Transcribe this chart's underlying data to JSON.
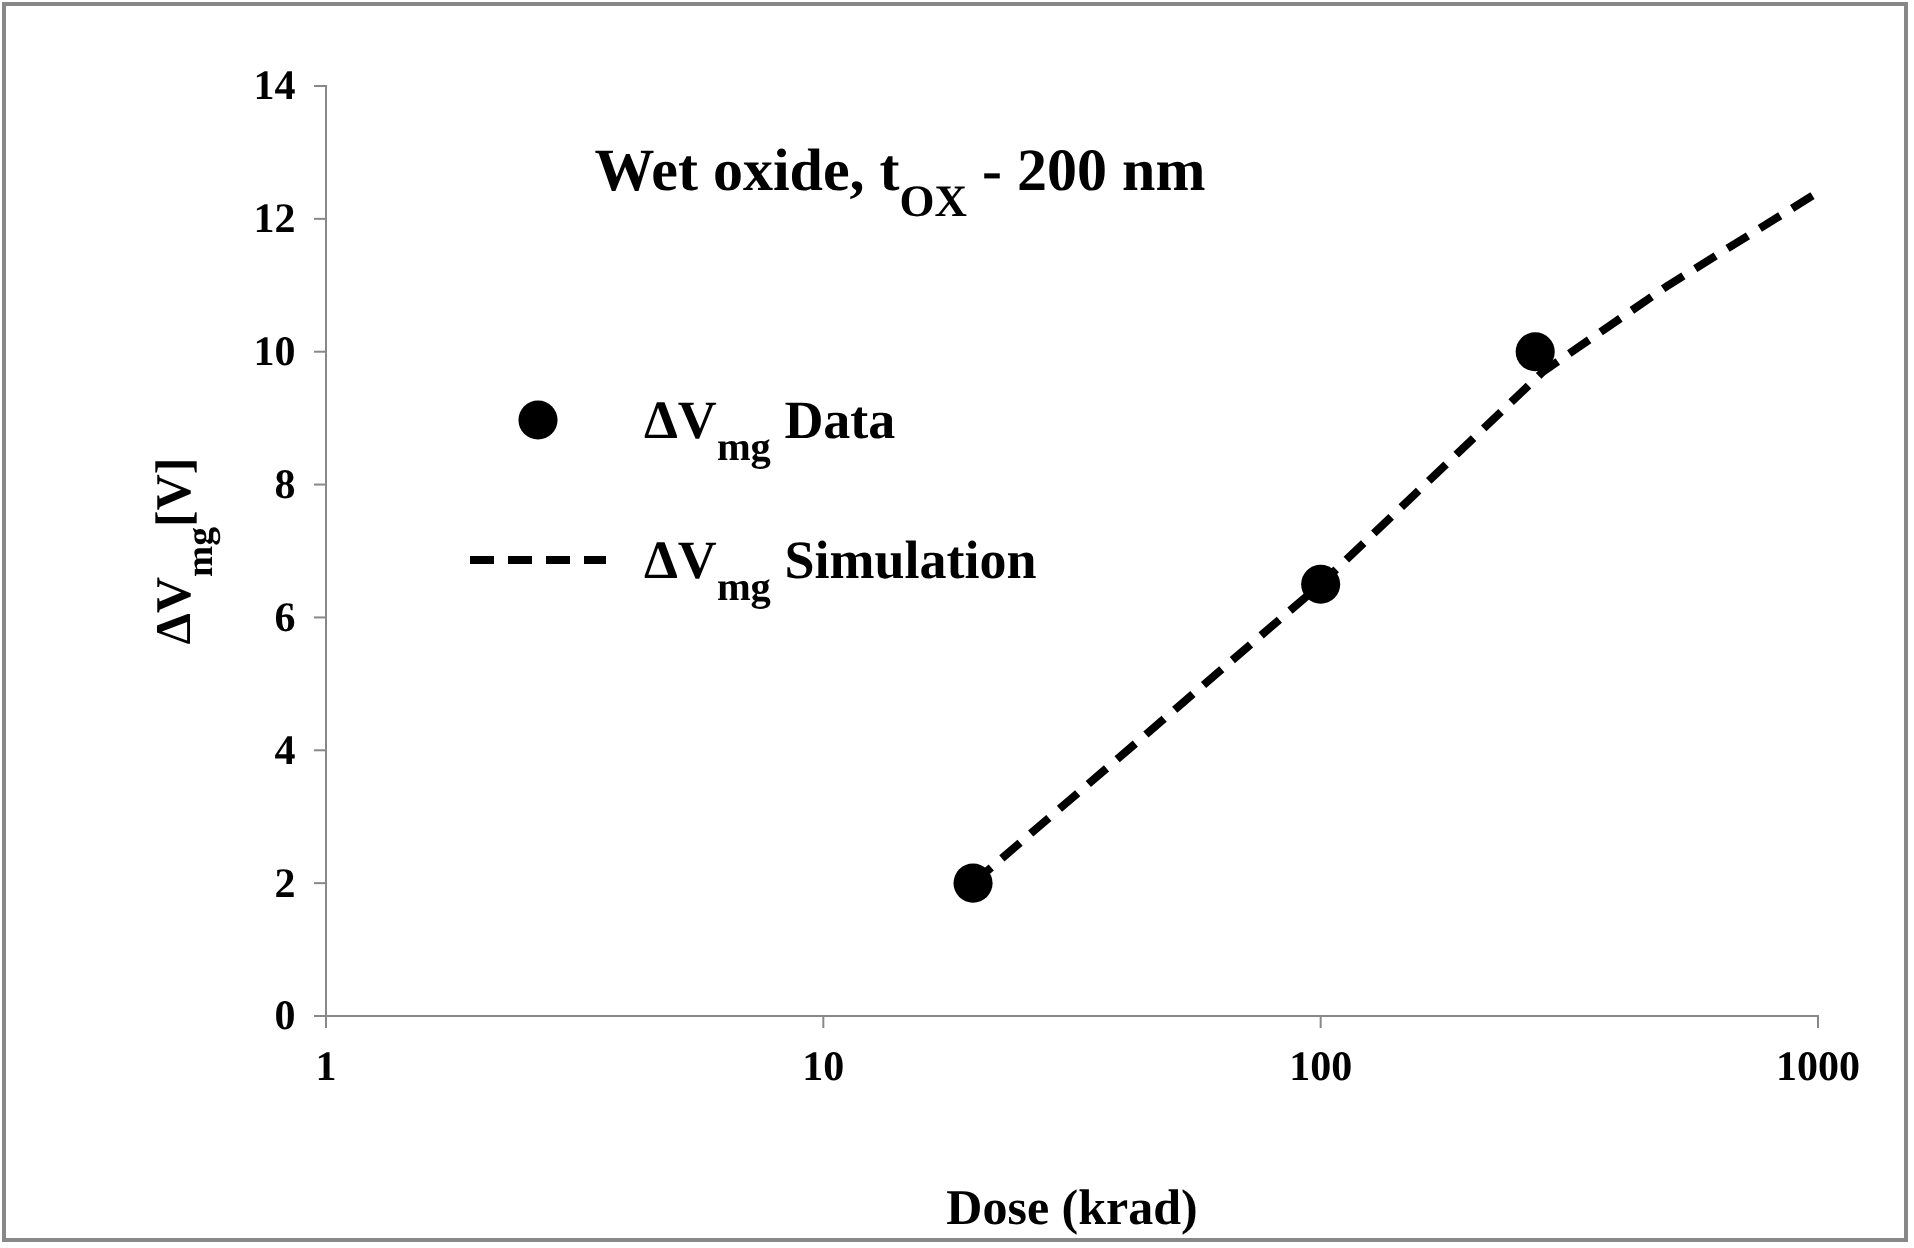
{
  "chart_data": {
    "type": "scatter",
    "title": "Wet oxide, t$_{OX}$ - 200 nm",
    "xlabel": "Dose (krad)",
    "ylabel": "ΔV$_{mg}$[V]",
    "log": "x",
    "xlim": [
      1,
      1000
    ],
    "xticks": [
      1,
      10,
      100,
      1000
    ],
    "ylim": [
      0,
      14
    ],
    "yticks": [
      0,
      2,
      4,
      6,
      8,
      10,
      12,
      14
    ],
    "grid": false,
    "legend": "left",
    "series": [
      {
        "name": "ΔV$_{mg}$ Data",
        "color": "#000000",
        "marker": "circle",
        "x": [
          20,
          100,
          270
        ],
        "values": [
          2,
          6.5,
          10
        ]
      },
      {
        "name": "ΔV$_{mg}$ Simulation",
        "type": "line",
        "color": "#000000",
        "line_style": "dashed",
        "marker": "none",
        "x": [
          20,
          100,
          280,
          500,
          1000
        ],
        "values": [
          2,
          6.5,
          9.7,
          11.0,
          12.4
        ]
      }
    ]
  }
}
